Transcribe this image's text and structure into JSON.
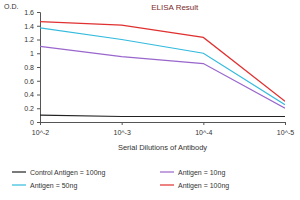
{
  "chart_data": {
    "type": "line",
    "title": "ELISA Result",
    "y_label": "O.D.",
    "x_label": "Serial Dilutions of Antibody",
    "categories": [
      "10^-2",
      "10^-3",
      "10^-4",
      "10^-5"
    ],
    "series": [
      {
        "name": "Control Antigen = 100ng",
        "color": "#222222",
        "values": [
          0.1,
          0.08,
          0.08,
          0.08
        ]
      },
      {
        "name": "Antigen = 10ng",
        "color": "#9966cc",
        "values": [
          1.1,
          0.95,
          0.85,
          0.2
        ]
      },
      {
        "name": "Antigen = 50ng",
        "color": "#33bbdd",
        "values": [
          1.37,
          1.2,
          1.0,
          0.25
        ]
      },
      {
        "name": "Antigen = 100ng",
        "color": "#e03030",
        "values": [
          1.46,
          1.41,
          1.23,
          0.3
        ]
      }
    ],
    "ylim": [
      0,
      1.6
    ],
    "yticks": [
      0,
      0.2,
      0.4,
      0.6,
      0.8,
      1,
      1.2,
      1.4,
      1.6
    ],
    "grid": false,
    "legend": "bottom"
  }
}
